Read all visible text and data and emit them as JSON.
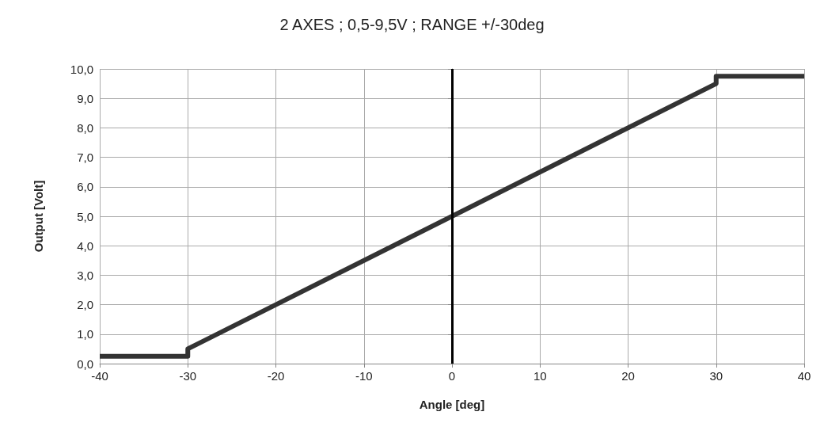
{
  "chart_data": {
    "type": "line",
    "title": "2 AXES ; 0,5-9,5V ; RANGE +/-30deg",
    "xlabel": "Angle [deg]",
    "ylabel": "Output [Volt]",
    "series": [
      {
        "color": "#333333",
        "x": [
          -40,
          -30,
          -30,
          30,
          30,
          40
        ],
        "values": [
          0.25,
          0.25,
          0.5,
          9.5,
          9.75,
          9.75
        ]
      }
    ],
    "xlim": [
      -40,
      40
    ],
    "xticks": [
      -40,
      -30,
      -20,
      -10,
      0,
      10,
      20,
      30,
      40
    ],
    "ylim": [
      0,
      10
    ],
    "yticks": [
      {
        "value": 0,
        "label": "0,0"
      },
      {
        "value": 1,
        "label": "1,0"
      },
      {
        "value": 2,
        "label": "2,0"
      },
      {
        "value": 3,
        "label": "3,0"
      },
      {
        "value": 4,
        "label": "4,0"
      },
      {
        "value": 5,
        "label": "5,0"
      },
      {
        "value": 6,
        "label": "6,0"
      },
      {
        "value": 7,
        "label": "7,0"
      },
      {
        "value": 8,
        "label": "8,0"
      },
      {
        "value": 9,
        "label": "9,0"
      },
      {
        "value": 10,
        "label": "10,0"
      }
    ],
    "ref_lines": [
      {
        "axis": "x",
        "value": 0,
        "color": "#000000"
      }
    ],
    "grid": true,
    "marker": "none",
    "line_style": "solid"
  }
}
